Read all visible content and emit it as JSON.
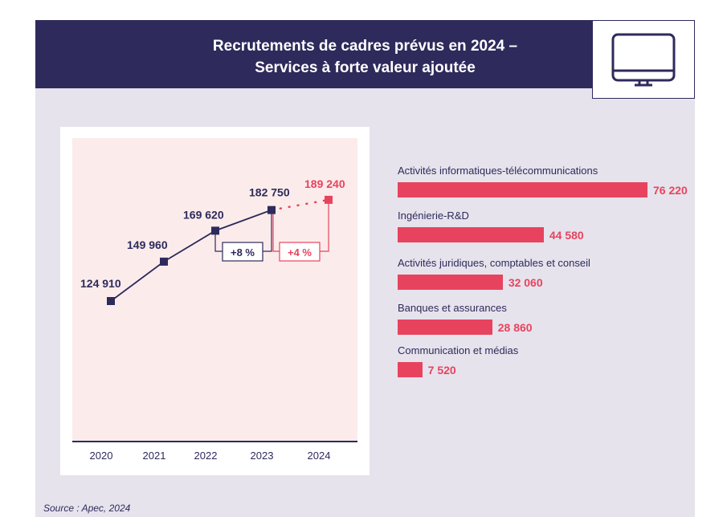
{
  "title_line1": "Recrutements de cadres prévus en 2024 –",
  "title_line2": "Services à forte valeur ajoutée",
  "icon": "monitor-icon",
  "source": "Source : Apec, 2024",
  "chart_data": [
    {
      "type": "line",
      "categories": [
        "2020",
        "2021",
        "2022",
        "2023",
        "2024"
      ],
      "values": [
        124910,
        149960,
        169620,
        182750,
        189240
      ],
      "labels": [
        "124 910",
        "149 960",
        "169 620",
        "182 750",
        "189 240"
      ],
      "forecast_index": 4,
      "annotations": [
        {
          "text": "+8 %",
          "from": "2022",
          "to": "2023"
        },
        {
          "text": "+4 %",
          "from": "2023",
          "to": "2024"
        }
      ],
      "colors": {
        "actual": "#2e2a5c",
        "forecast": "#e8435e"
      }
    },
    {
      "type": "bar",
      "orientation": "horizontal",
      "categories": [
        "Activités informatiques-télécommunications",
        "Ingénierie-R&D",
        "Activités juridiques, comptables et conseil",
        "Banques et assurances",
        "Communication et médias"
      ],
      "values": [
        76220,
        44580,
        32060,
        28860,
        7520
      ],
      "labels": [
        "76 220",
        "44 580",
        "32 060",
        "28 860",
        "7 520"
      ],
      "color": "#e8435e"
    }
  ]
}
